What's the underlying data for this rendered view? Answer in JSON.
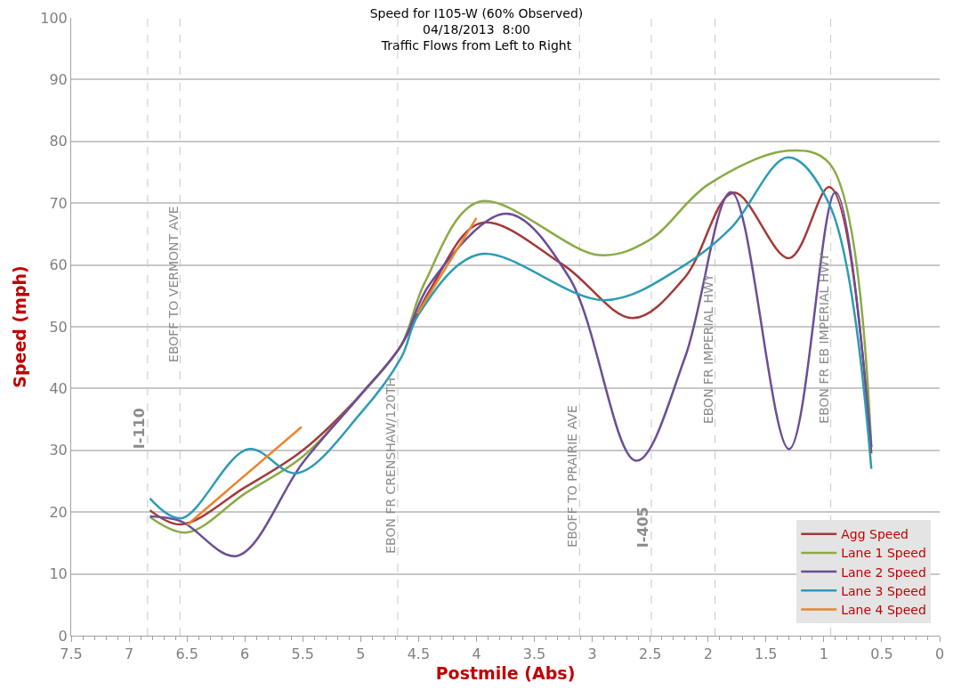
{
  "chart_data": {
    "type": "line",
    "title": "Speed for I105-W (60% Observed)\n04/18/2013  8:00\nTraffic Flows from Left to Right",
    "xlabel": "Postmile (Abs)",
    "ylabel": "Speed (mph)",
    "xlim": [
      7.5,
      0
    ],
    "xticks": [
      7.5,
      7,
      6.5,
      6,
      5.5,
      5,
      4.5,
      4,
      3.5,
      3,
      2.5,
      2,
      1.5,
      1,
      0.5,
      0
    ],
    "ylim": [
      0,
      100
    ],
    "yticks": [
      0,
      10,
      20,
      30,
      40,
      50,
      60,
      70,
      80,
      90,
      100
    ],
    "grid": "y",
    "legend": "bottom right",
    "marker": "none",
    "line_style": "solid",
    "series": [
      {
        "name": "Agg Speed",
        "color": "#a33a3a",
        "x": [
          6.82,
          6.55,
          6.0,
          5.5,
          5.0,
          4.65,
          4.4,
          3.96,
          3.25,
          2.65,
          2.2,
          1.78,
          1.3,
          0.95,
          0.59
        ],
        "values": [
          20.3,
          18.0,
          24,
          30,
          39,
          47,
          56,
          66.8,
          60,
          51.4,
          58,
          71.7,
          61.1,
          72.6,
          29.5
        ]
      },
      {
        "name": "Lane 1 Speed",
        "color": "#8aab45",
        "x": [
          6.82,
          6.5,
          6.0,
          5.5,
          5.0,
          4.65,
          4.45,
          3.98,
          2.94,
          2.51,
          2.0,
          1.31,
          0.95,
          0.59
        ],
        "values": [
          19.2,
          16.7,
          23,
          29,
          39,
          47,
          57,
          70.2,
          61.6,
          64,
          73,
          78.5,
          76.4,
          30.5
        ]
      },
      {
        "name": "Lane 2 Speed",
        "color": "#6c4d96",
        "x": [
          6.82,
          6.55,
          6.07,
          5.5,
          5.0,
          4.65,
          4.4,
          3.74,
          3.2,
          2.62,
          2.2,
          1.8,
          1.3,
          0.9,
          0.59
        ],
        "values": [
          19.3,
          18.5,
          12.9,
          28,
          39,
          47,
          57,
          68.3,
          58,
          28.3,
          45,
          71.8,
          30.2,
          71.8,
          30.5
        ]
      },
      {
        "name": "Lane 3 Speed",
        "color": "#2c9bb5",
        "x": [
          6.82,
          6.55,
          5.97,
          5.55,
          5.0,
          4.65,
          4.5,
          3.98,
          2.89,
          2.2,
          1.8,
          1.31,
          0.95,
          0.59
        ],
        "values": [
          22.2,
          19.0,
          30.2,
          26.3,
          36,
          45,
          52,
          61.7,
          54.3,
          60,
          66,
          77.4,
          69.7,
          27
        ]
      },
      {
        "name": "Lane 4 Speed",
        "color": "#e8862f",
        "x": [
          6.5,
          5.51,
          5.0,
          4.51,
          4.0
        ],
        "values": [
          17.9,
          33.8,
          null,
          52.1,
          67.6
        ]
      }
    ],
    "ref_lines": [
      {
        "axis": "x",
        "value": 6.84,
        "label": "I-110",
        "color": "#c8c8c8",
        "line_style": "dashed"
      },
      {
        "axis": "x",
        "value": 6.56,
        "label": "EBOFF TO VERMONT AVE",
        "color": "#c8c8c8",
        "line_style": "dashed"
      },
      {
        "axis": "x",
        "value": 4.68,
        "label": "EBON FR CRENSHAW/120TH",
        "color": "#c8c8c8",
        "line_style": "dashed"
      },
      {
        "axis": "x",
        "value": 3.11,
        "label": "EBOFF TO PRAIRIE AVE",
        "color": "#c8c8c8",
        "line_style": "dashed"
      },
      {
        "axis": "x",
        "value": 2.49,
        "label": "I-405",
        "color": "#c8c8c8",
        "line_style": "dashed"
      },
      {
        "axis": "x",
        "value": 1.94,
        "label": "EBON FR IMPERIAL HWY",
        "color": "#c8c8c8",
        "line_style": "dashed"
      },
      {
        "axis": "x",
        "value": 0.94,
        "label": "EBON FR EB IMPERIAL HWY",
        "color": "#c8c8c8",
        "line_style": "dashed"
      }
    ]
  }
}
